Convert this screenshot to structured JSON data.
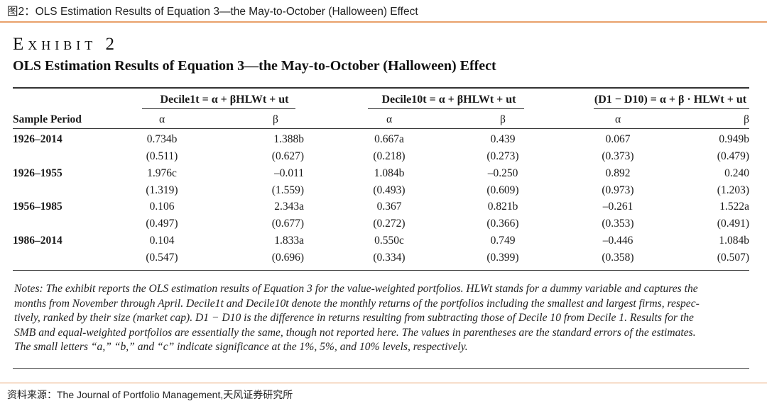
{
  "caption": "图2：OLS Estimation Results of Equation 3—the May-to-October (Halloween) Effect",
  "exhibit": {
    "label": "Exhibit 2",
    "title": "OLS Estimation Results of Equation 3—the May-to-October (Halloween) Effect"
  },
  "table": {
    "group_headers": [
      "Decile1t = α + βHLWt + ut",
      "Decile10t = α + βHLWt + ut",
      "(D1 − D10) = α + β · HLWt + ut"
    ],
    "sample_period_header": "Sample Period",
    "alpha_label": "α",
    "beta_label": "β",
    "rows": [
      {
        "period": "1926–2014",
        "estimates": [
          "0.734b",
          "1.388b",
          "0.667a",
          "0.439",
          "0.067",
          "0.949b"
        ],
        "errors": [
          "(0.511)",
          "(0.627)",
          "(0.218)",
          "(0.273)",
          "(0.373)",
          "(0.479)"
        ]
      },
      {
        "period": "1926–1955",
        "estimates": [
          "1.976c",
          "–0.011",
          "1.084b",
          "–0.250",
          "0.892",
          "0.240"
        ],
        "errors": [
          "(1.319)",
          "(1.559)",
          "(0.493)",
          "(0.609)",
          "(0.973)",
          "(1.203)"
        ]
      },
      {
        "period": "1956–1985",
        "estimates": [
          "0.106",
          "2.343a",
          "0.367",
          "0.821b",
          "–0.261",
          "1.522a"
        ],
        "errors": [
          "(0.497)",
          "(0.677)",
          "(0.272)",
          "(0.366)",
          "(0.353)",
          "(0.491)"
        ]
      },
      {
        "period": "1986–2014",
        "estimates": [
          "0.104",
          "1.833a",
          "0.550c",
          "0.749",
          "–0.446",
          "1.084b"
        ],
        "errors": [
          "(0.547)",
          "(0.696)",
          "(0.334)",
          "(0.399)",
          "(0.358)",
          "(0.507)"
        ]
      }
    ]
  },
  "notes": [
    "Notes: The exhibit reports the OLS estimation results of Equation 3 for the value-weighted portfolios. HLWt stands for a dummy variable and captures the",
    "months from November through April. Decile1t and Decile10t denote the monthly returns of the portfolios including the smallest and largest firms, respec-",
    "tively, ranked by their size (market cap). D1 − D10 is the difference in returns resulting from subtracting those of Decile 10 from Decile 1. Results for the",
    "SMB and equal-weighted portfolios are essentially the same, though not reported here. The values in parentheses are the standard errors of the estimates.",
    "The small letters “a,” “b,” and “c” indicate significance at the 1%, 5%, and 10% levels, respectively."
  ],
  "source": "资料来源：The Journal of Portfolio Management,天风证券研究所",
  "colors": {
    "accent_rule": "#e8a06a",
    "text": "#1a1a1a"
  }
}
